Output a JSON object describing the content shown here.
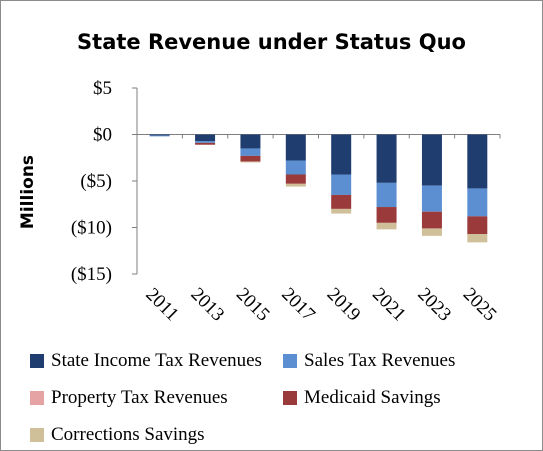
{
  "chart_data": {
    "type": "bar",
    "stacked": true,
    "title": "State Revenue under Status Quo",
    "xlabel": "",
    "ylabel": "Millions",
    "ylim": [
      -15,
      5
    ],
    "y_ticks": [
      5,
      0,
      -5,
      -10,
      -15
    ],
    "y_tick_labels": [
      "$5",
      "$0",
      "($5)",
      "($10)",
      "($15)"
    ],
    "categories": [
      "2011",
      "2013",
      "2015",
      "2017",
      "2019",
      "2021",
      "2023",
      "2025"
    ],
    "grid": false,
    "legend_position": "bottom",
    "series": [
      {
        "name": "State Income Tax Revenues",
        "color": "#1f3d6e",
        "values": [
          -0.1,
          -0.7,
          -1.5,
          -2.8,
          -4.3,
          -5.2,
          -5.5,
          -5.8
        ]
      },
      {
        "name": "Sales Tax Revenues",
        "color": "#5b8fd1",
        "values": [
          -0.1,
          -0.2,
          -0.8,
          -1.5,
          -2.2,
          -2.6,
          -2.8,
          -3.0
        ]
      },
      {
        "name": "Property Tax Revenues",
        "color": "#e6a3a3",
        "values": [
          0,
          0,
          0,
          0,
          0,
          0,
          0,
          0
        ]
      },
      {
        "name": "Medicaid Savings",
        "color": "#9b3a3a",
        "values": [
          0,
          -0.2,
          -0.6,
          -1.0,
          -1.5,
          -1.7,
          -1.8,
          -1.9
        ]
      },
      {
        "name": "Corrections Savings",
        "color": "#cfc09a",
        "values": [
          0,
          0,
          -0.1,
          -0.3,
          -0.5,
          -0.7,
          -0.8,
          -0.9
        ]
      }
    ]
  }
}
